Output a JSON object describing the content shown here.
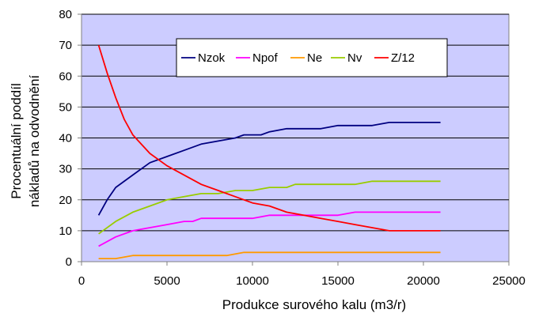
{
  "chart_data": {
    "type": "line",
    "title": "",
    "xlabel": "Produkce surového kalu (m3/r)",
    "ylabel_lines": [
      "Procentuální poddíl",
      "nákladů na odvodnění"
    ],
    "xlim": [
      0,
      25000
    ],
    "ylim": [
      0,
      80
    ],
    "xticks": [
      0,
      5000,
      10000,
      15000,
      20000,
      25000
    ],
    "yticks": [
      0,
      10,
      20,
      30,
      40,
      50,
      60,
      70,
      80
    ],
    "grid": "horizontal",
    "plot_background": "#ccccff",
    "legend_position": "top-center",
    "series": [
      {
        "name": "Nzok",
        "color": "#000080",
        "points": [
          [
            1000,
            15
          ],
          [
            1500,
            20
          ],
          [
            2000,
            24
          ],
          [
            3000,
            28
          ],
          [
            4000,
            32
          ],
          [
            5000,
            34
          ],
          [
            6000,
            36
          ],
          [
            7000,
            38
          ],
          [
            8000,
            39
          ],
          [
            9000,
            40
          ],
          [
            9500,
            41
          ],
          [
            10500,
            41
          ],
          [
            11000,
            42
          ],
          [
            12000,
            43
          ],
          [
            13000,
            43
          ],
          [
            14000,
            43
          ],
          [
            15000,
            44
          ],
          [
            16000,
            44
          ],
          [
            17000,
            44
          ],
          [
            18000,
            45
          ],
          [
            19000,
            45
          ],
          [
            20000,
            45
          ],
          [
            21000,
            45
          ]
        ]
      },
      {
        "name": "Npof",
        "color": "#ff00ff",
        "points": [
          [
            1000,
            5
          ],
          [
            2000,
            8
          ],
          [
            3000,
            10
          ],
          [
            4000,
            11
          ],
          [
            5000,
            12
          ],
          [
            6000,
            13
          ],
          [
            6500,
            13
          ],
          [
            7000,
            14
          ],
          [
            8000,
            14
          ],
          [
            9000,
            14
          ],
          [
            10000,
            14
          ],
          [
            11000,
            15
          ],
          [
            12000,
            15
          ],
          [
            13000,
            15
          ],
          [
            14000,
            15
          ],
          [
            15000,
            15
          ],
          [
            16000,
            16
          ],
          [
            17000,
            16
          ],
          [
            18000,
            16
          ],
          [
            19000,
            16
          ],
          [
            20000,
            16
          ],
          [
            21000,
            16
          ]
        ]
      },
      {
        "name": "Ne",
        "color": "#ff9900",
        "points": [
          [
            1000,
            1
          ],
          [
            2000,
            1
          ],
          [
            3000,
            2
          ],
          [
            4000,
            2
          ],
          [
            5000,
            2
          ],
          [
            6000,
            2
          ],
          [
            7000,
            2
          ],
          [
            8000,
            2
          ],
          [
            8500,
            2
          ],
          [
            9500,
            3
          ],
          [
            11000,
            3
          ],
          [
            13000,
            3
          ],
          [
            15000,
            3
          ],
          [
            17000,
            3
          ],
          [
            19000,
            3
          ],
          [
            21000,
            3
          ]
        ]
      },
      {
        "name": "Nv",
        "color": "#99cc00",
        "points": [
          [
            1000,
            9
          ],
          [
            2000,
            13
          ],
          [
            3000,
            16
          ],
          [
            4000,
            18
          ],
          [
            5000,
            20
          ],
          [
            6000,
            21
          ],
          [
            7000,
            22
          ],
          [
            8000,
            22
          ],
          [
            9000,
            23
          ],
          [
            10000,
            23
          ],
          [
            11000,
            24
          ],
          [
            12000,
            24
          ],
          [
            12500,
            25
          ],
          [
            13000,
            25
          ],
          [
            14000,
            25
          ],
          [
            15000,
            25
          ],
          [
            16000,
            25
          ],
          [
            17000,
            26
          ],
          [
            18000,
            26
          ],
          [
            19000,
            26
          ],
          [
            20000,
            26
          ],
          [
            21000,
            26
          ]
        ]
      },
      {
        "name": "Z/12",
        "color": "#ff0000",
        "points": [
          [
            1000,
            70
          ],
          [
            1500,
            61
          ],
          [
            2000,
            53
          ],
          [
            2500,
            46
          ],
          [
            3000,
            41
          ],
          [
            4000,
            35
          ],
          [
            5000,
            31
          ],
          [
            6000,
            28
          ],
          [
            7000,
            25
          ],
          [
            8000,
            23
          ],
          [
            9000,
            21
          ],
          [
            10000,
            19
          ],
          [
            11000,
            18
          ],
          [
            12000,
            16
          ],
          [
            13000,
            15
          ],
          [
            14000,
            14
          ],
          [
            15000,
            13
          ],
          [
            16000,
            12
          ],
          [
            17000,
            11
          ],
          [
            18000,
            10
          ],
          [
            19000,
            10
          ],
          [
            20000,
            10
          ],
          [
            21000,
            10
          ]
        ]
      }
    ]
  }
}
